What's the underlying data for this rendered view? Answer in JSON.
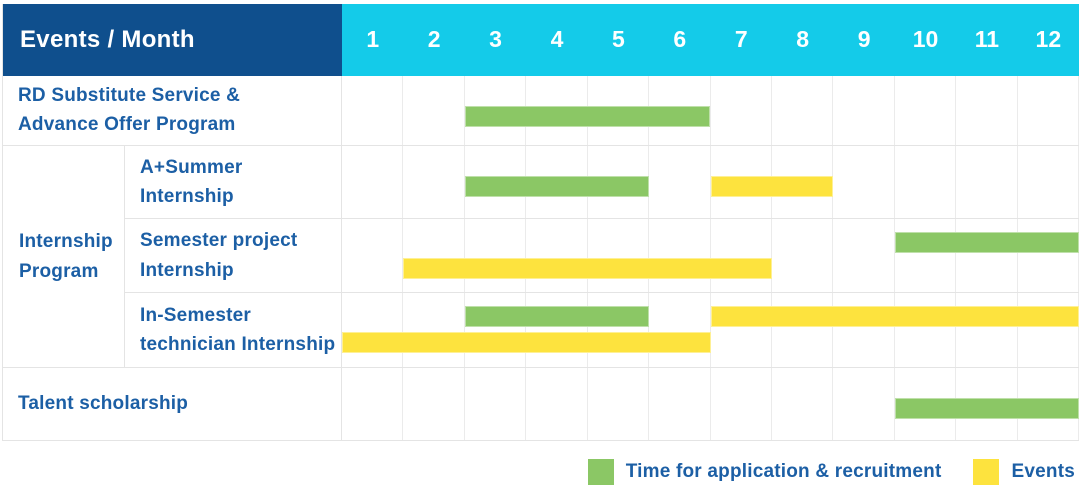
{
  "colors": {
    "header_bg": "#0F4F8D",
    "month_header_bg": "#14CBE9",
    "header_text": "#FFFFFF",
    "label_text": "#1C5FA5",
    "grid_line": "#EBEBEB",
    "row_border": "#E4E4E4",
    "series": {
      "application": "#8BC765",
      "event": "#FDE33E"
    }
  },
  "chart_data": {
    "type": "bar",
    "subtype": "gantt-table",
    "corner_label": "Events / Month",
    "x_axis_label": "Month",
    "x_range": [
      1,
      12
    ],
    "grid": true,
    "legend_position": "bottom-right",
    "months": [
      "1",
      "2",
      "3",
      "4",
      "5",
      "6",
      "7",
      "8",
      "9",
      "10",
      "11",
      "12"
    ],
    "group_label": "Internship\nProgram",
    "rows": [
      {
        "id": "rd-substitute-service",
        "group": null,
        "label": "RD Substitute Service &\nAdvance Offer Program",
        "bars": [
          {
            "series": "application",
            "start_month": 3,
            "end_month": 6,
            "track": "single"
          }
        ]
      },
      {
        "id": "a-plus-summer-internship",
        "group": "Internship Program",
        "label": "A+Summer\nInternship",
        "bars": [
          {
            "series": "application",
            "start_month": 3,
            "end_month": 5,
            "track": "single"
          },
          {
            "series": "event",
            "start_month": 7,
            "end_month": 8,
            "track": "single"
          }
        ]
      },
      {
        "id": "semester-project-internship",
        "group": "Internship Program",
        "label": "Semester project\nInternship",
        "bars": [
          {
            "series": "application",
            "start_month": 10,
            "end_month": 12,
            "track": "upper"
          },
          {
            "series": "event",
            "start_month": 2,
            "end_month": 7,
            "track": "lower"
          }
        ]
      },
      {
        "id": "in-semester-technician-internship",
        "group": "Internship Program",
        "label": "In-Semester\ntechnician Internship",
        "bars": [
          {
            "series": "application",
            "start_month": 3,
            "end_month": 5,
            "track": "upper"
          },
          {
            "series": "event",
            "start_month": 7,
            "end_month": 12,
            "track": "upper"
          },
          {
            "series": "event",
            "start_month": 1,
            "end_month": 6,
            "track": "lower"
          }
        ]
      },
      {
        "id": "talent-scholarship",
        "group": null,
        "label": "Talent scholarship",
        "bars": [
          {
            "series": "application",
            "start_month": 10,
            "end_month": 12,
            "track": "single"
          }
        ]
      }
    ],
    "legend": [
      {
        "series": "application",
        "label": "Time for application & recruitment"
      },
      {
        "series": "event",
        "label": "Events"
      }
    ]
  }
}
